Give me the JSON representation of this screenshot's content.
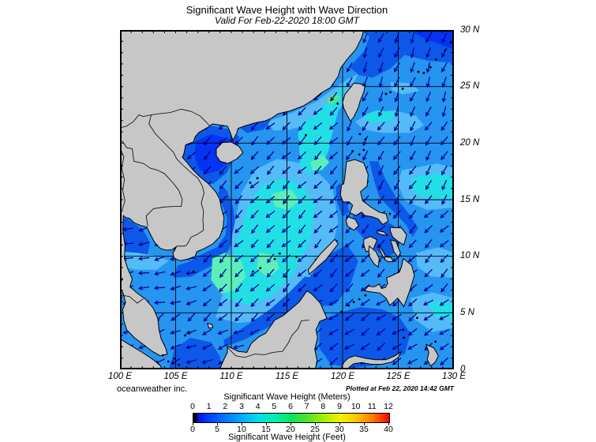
{
  "title": "Significant Wave Height with Wave Direction",
  "subtitle": "Valid For Feb-22-2020 18:00 GMT",
  "footer": {
    "credit": "oceanweather inc.",
    "plotted": "Plotted at Feb 22, 2020 14:42 GMT"
  },
  "axes": {
    "x_labels": [
      "100 E",
      "105 E",
      "110 E",
      "115 E",
      "120 E",
      "125 E",
      "130 E"
    ],
    "y_labels": [
      "30 N",
      "25 N",
      "20 N",
      "15 N",
      "10 N",
      "5 N",
      "0"
    ],
    "lon_range": [
      100,
      130
    ],
    "lat_range": [
      0,
      30
    ],
    "grid_step_deg": 5,
    "minor_tick_step_deg": 1
  },
  "legend": {
    "title_meters": "Significant Wave Height (Meters)",
    "title_feet": "Significant Wave Height (Feet)",
    "meters_ticks": [
      "0",
      "1",
      "2",
      "3",
      "4",
      "5",
      "6",
      "7",
      "8",
      "9",
      "10",
      "11",
      "12"
    ],
    "feet_ticks": [
      "0",
      "5",
      "10",
      "15",
      "20",
      "25",
      "30",
      "35",
      "40"
    ],
    "gradient_stops": [
      "#000000 0%",
      "#000000 1.2%",
      "#0013e6 2.5%",
      "#0042ff 8.3%",
      "#007aff 16.7%",
      "#00acff 25%",
      "#00dfe2 33.3%",
      "#00efae 41.7%",
      "#0ce45e 50%",
      "#52e32a 58.3%",
      "#a8ef00 66.7%",
      "#f2f200 75%",
      "#ffc400 83.3%",
      "#ff7a00 91.7%",
      "#ff1e00 98%",
      "#ff0000 100%"
    ]
  },
  "colors": {
    "ocean_base": "#2595f0",
    "ocean_dark": "#0c58e8",
    "ocean_vivid": "#0533f2",
    "ocean_light": "#54bbf7",
    "ocean_cyan": "#22dfe5",
    "ocean_aqua": "#5defb9",
    "ocean_green": "#62e870",
    "land": "#c7c7c7",
    "coast": "#000000",
    "grid": "#000000",
    "arrow": "#000092",
    "text": "#000000"
  }
}
